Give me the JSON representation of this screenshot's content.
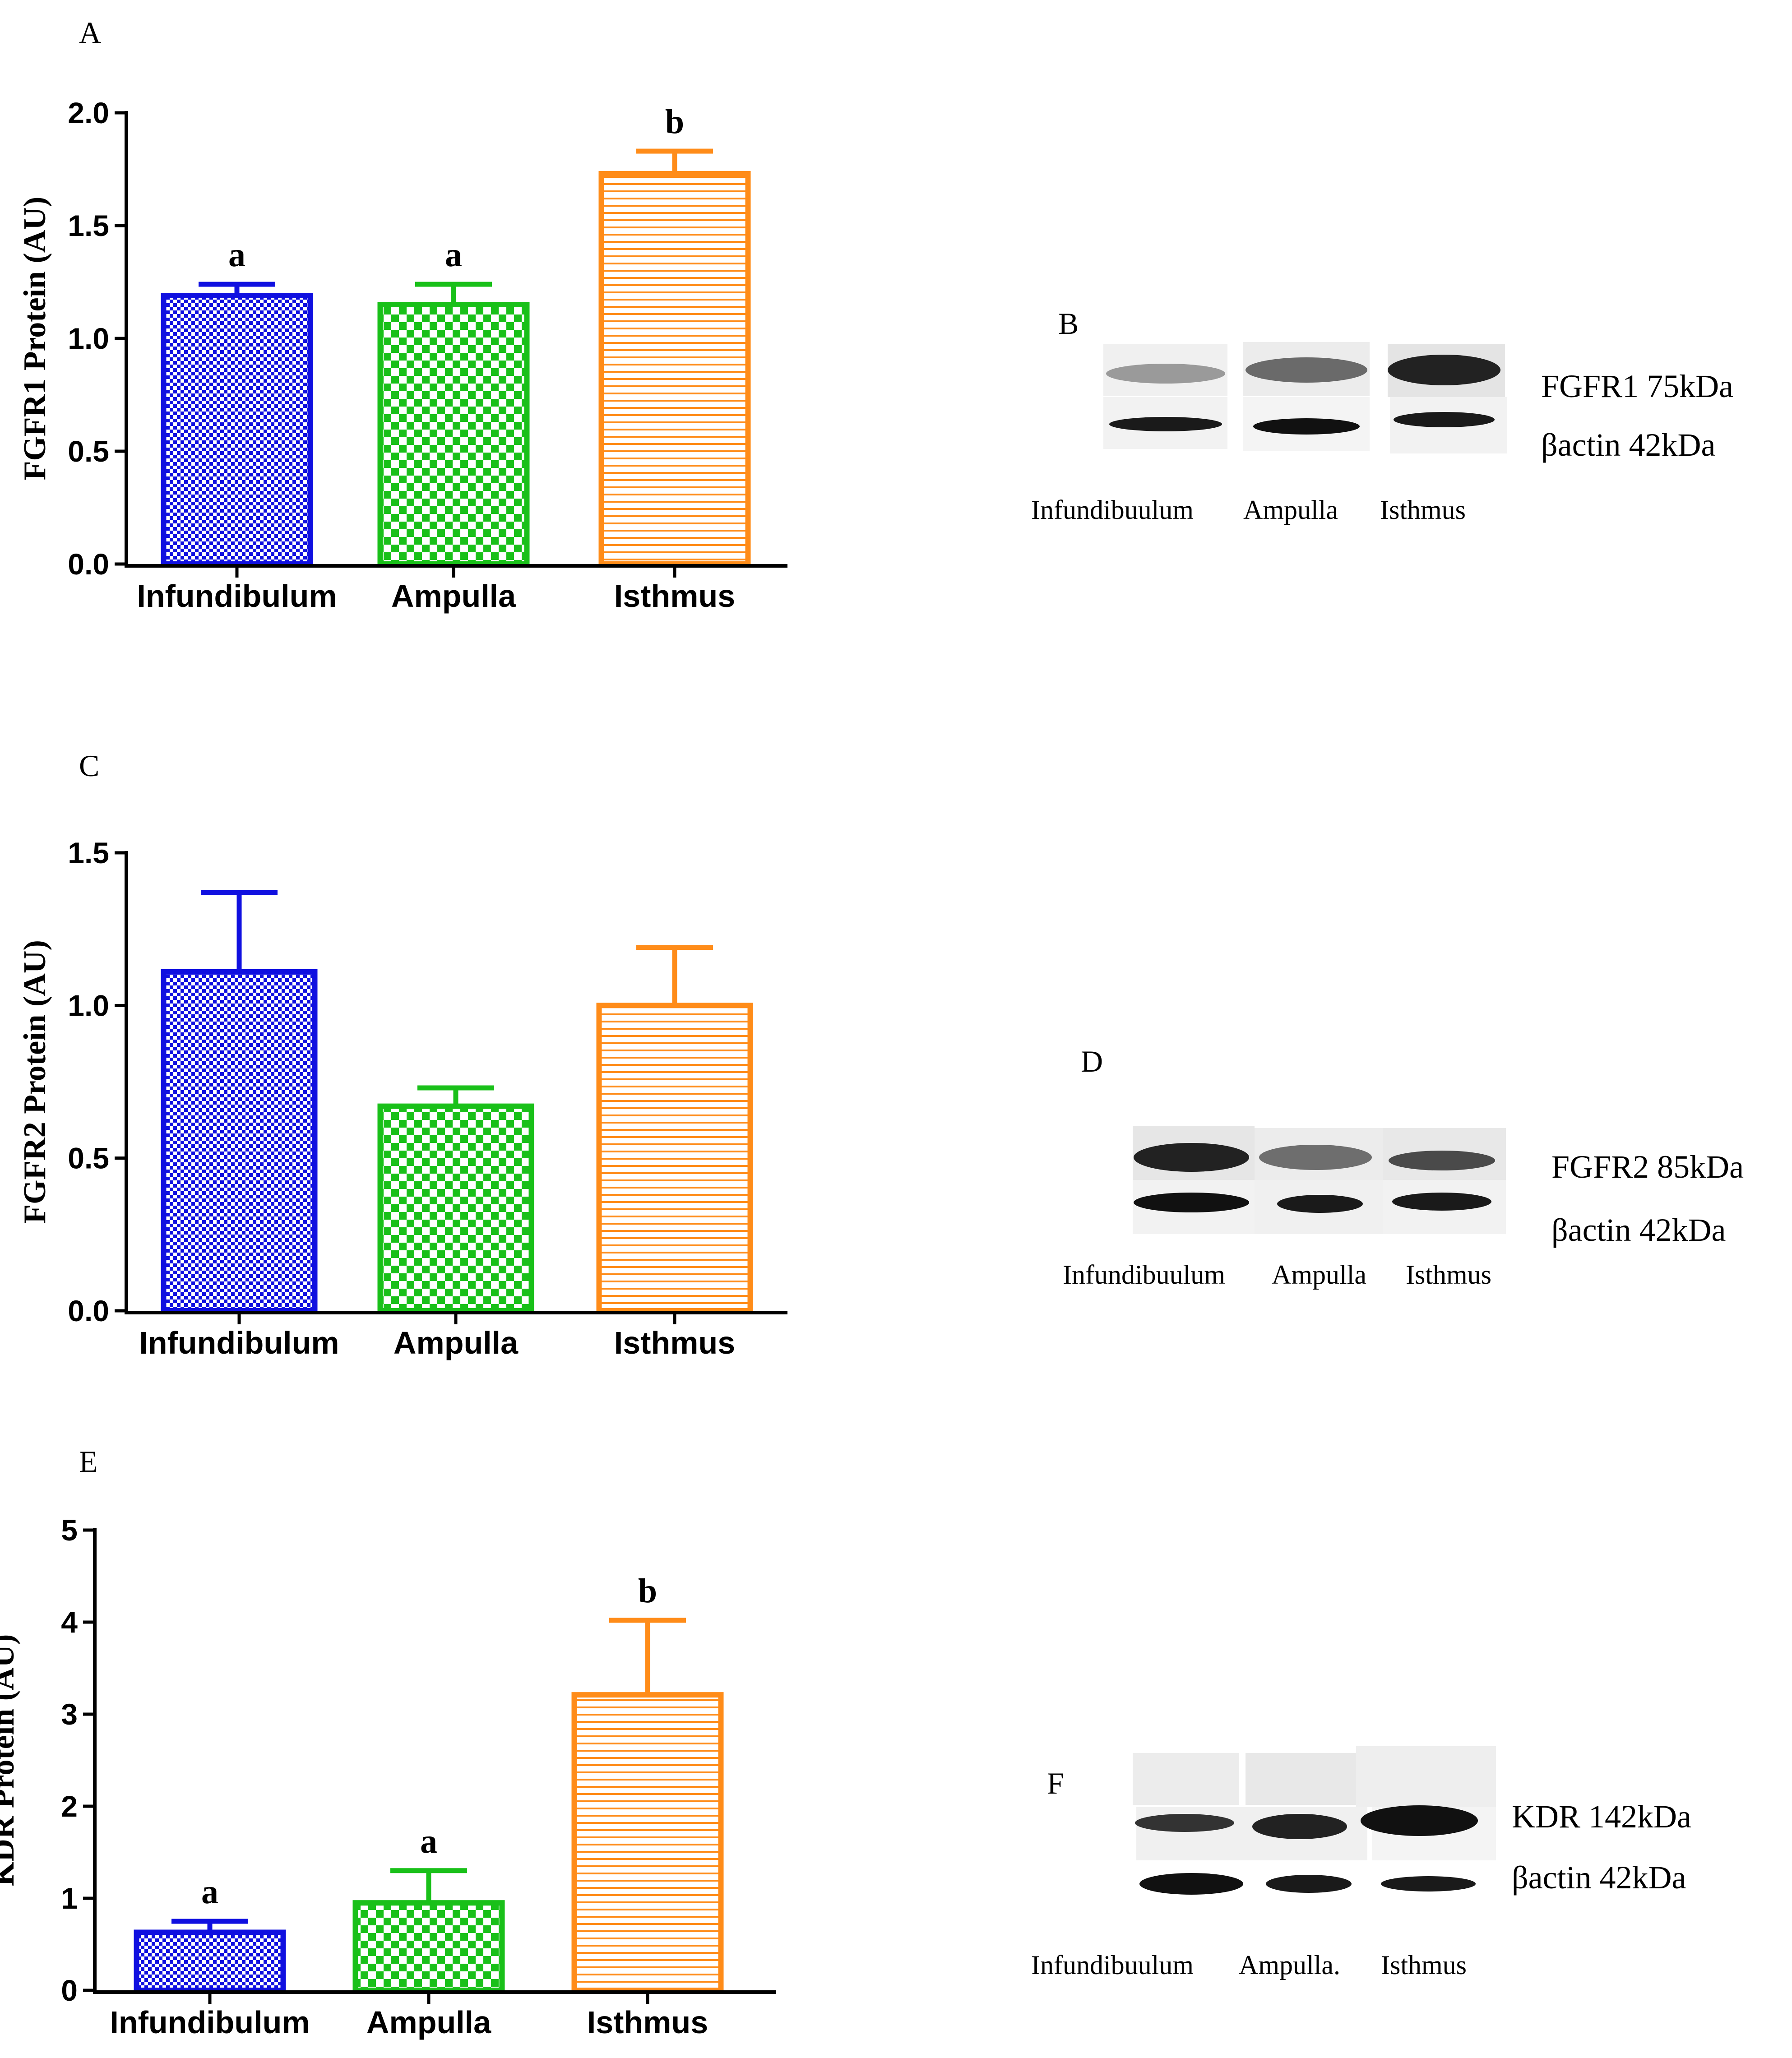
{
  "colors": {
    "blue": "#1010e0",
    "green": "#19c019",
    "orange": "#ff8c19",
    "axis": "#000000"
  },
  "chart_data": [
    {
      "panel": "A",
      "type": "bar",
      "ylabel": "FGFR1 Protein (AU)",
      "categories": [
        "Infundibulum",
        "Ampulla",
        "Isthmus"
      ],
      "values": [
        1.19,
        1.15,
        1.73
      ],
      "errors": [
        0.05,
        0.09,
        0.1
      ],
      "significance": [
        "a",
        "a",
        "b"
      ],
      "ylim": [
        0,
        2.0
      ],
      "yticks": [
        "0.0",
        "0.5",
        "1.0",
        "1.5",
        "2.0"
      ],
      "patterns": [
        "checker-blue",
        "checker-green",
        "horizontal-orange"
      ]
    },
    {
      "panel": "C",
      "type": "bar",
      "ylabel": "FGFR2 Protein (AU)",
      "categories": [
        "Infundibulum",
        "Ampulla",
        "Isthmus"
      ],
      "values": [
        1.11,
        0.67,
        1.0
      ],
      "errors": [
        0.26,
        0.06,
        0.19
      ],
      "significance": [
        "",
        "",
        ""
      ],
      "ylim": [
        0,
        1.5
      ],
      "yticks": [
        "0.0",
        "0.5",
        "1.0",
        "1.5"
      ],
      "patterns": [
        "checker-blue",
        "checker-green",
        "horizontal-orange"
      ]
    },
    {
      "panel": "E",
      "type": "bar",
      "ylabel": "KDR Protein (AU)",
      "categories": [
        "Infundibulum",
        "Ampulla",
        "Isthmus"
      ],
      "values": [
        0.63,
        0.95,
        3.21
      ],
      "errors": [
        0.12,
        0.35,
        0.81
      ],
      "significance": [
        "a",
        "a",
        "b"
      ],
      "ylim": [
        0,
        5
      ],
      "yticks": [
        "0",
        "1",
        "2",
        "3",
        "4",
        "5"
      ],
      "patterns": [
        "checker-blue",
        "checker-green",
        "horizontal-orange"
      ]
    }
  ],
  "blots": [
    {
      "panel": "B",
      "labels": [
        "FGFR1 75kDa",
        "βactin 42kDa"
      ],
      "lanes": [
        "Infundibuulum",
        "Ampulla",
        "Isthmus"
      ]
    },
    {
      "panel": "D",
      "labels": [
        "FGFR2 85kDa",
        "βactin 42kDa"
      ],
      "lanes": [
        "Infundibuulum",
        "Ampulla",
        "Isthmus"
      ]
    },
    {
      "panel": "F",
      "labels": [
        "KDR 142kDa",
        "βactin 42kDa"
      ],
      "lanes": [
        "Infundibuulum",
        "Ampulla.",
        "Isthmus"
      ]
    }
  ]
}
